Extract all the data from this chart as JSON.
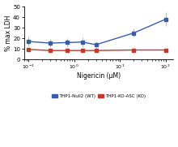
{
  "xlabel": "Nigericin (μM)",
  "ylabel": "% max LDH",
  "xlim": [
    0.08,
    150
  ],
  "ylim": [
    0,
    50
  ],
  "yticks": [
    0,
    10,
    20,
    30,
    40,
    50
  ],
  "x_all": [
    0.1,
    0.3,
    0.7,
    1.5,
    3.0,
    20.0,
    100.0
  ],
  "blue_y": [
    17,
    15.5,
    16,
    16.5,
    14,
    25,
    38
  ],
  "blue_yerr_low": [
    4.5,
    3.5,
    4,
    4.5,
    3,
    3,
    6
  ],
  "blue_yerr_high": [
    4.5,
    3.5,
    4,
    4.5,
    3,
    4,
    7
  ],
  "red_y": [
    9.5,
    8.5,
    8.5,
    8.5,
    8.5,
    9,
    9
  ],
  "red_yerr_low": [
    1.0,
    0.5,
    0.5,
    0.5,
    0.5,
    0.5,
    0.5
  ],
  "red_yerr_high": [
    1.0,
    0.5,
    0.5,
    0.5,
    0.5,
    0.5,
    0.5
  ],
  "blue_color": "#3a5ca8",
  "blue_color_light": "#aabfe0",
  "red_color": "#c0392b",
  "red_color_light": "#e8aaaa",
  "legend_blue": "THP1-Null2 (WT)",
  "legend_red": "THP1-KO-ASC (KO)"
}
